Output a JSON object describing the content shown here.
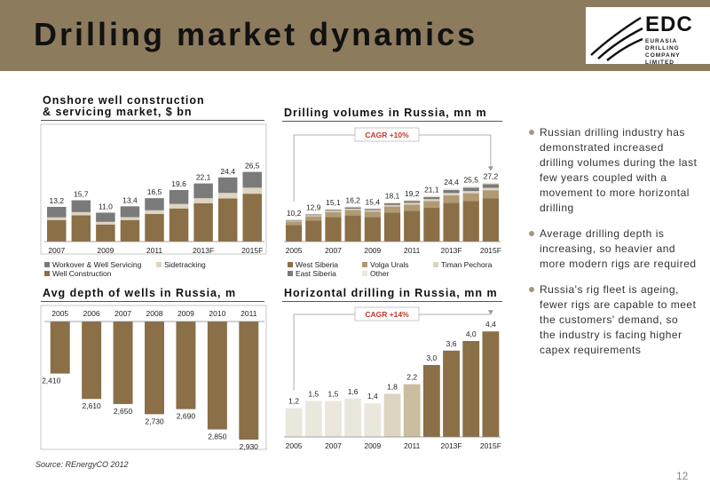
{
  "header": {
    "title": "Drilling market dynamics"
  },
  "logo": {
    "word": "EDC",
    "sub1": "EURASIA DRILLING",
    "sub2": "COMPANY LIMITED"
  },
  "chart1": {
    "title1": "Onshore well construction",
    "title2": "& servicing market, $ bn"
  },
  "chart2": {
    "title": "Drilling volumes in Russia, mn m",
    "cagr": "CAGR +10%"
  },
  "chart3": {
    "title": "Avg depth of wells in Russia, m"
  },
  "chart4": {
    "title": "Horizontal drilling in Russia, mn m",
    "cagr": "CAGR +14%"
  },
  "bullets": [
    "Russian drilling industry has demonstrated increased drilling volumes during the last few years coupled with a movement to more horizontal drilling",
    "Average drilling depth is increasing, so heavier and more modern rigs are required",
    "Russia's rig fleet is ageing, fewer rigs are capable to meet the customers' demand, so the industry is facing higher capex requirements"
  ],
  "source": "Source: REnergyCO 2012",
  "page_number": "12",
  "colors": {
    "header": "#8d7b5d",
    "dark": "#8a6f47",
    "mid": "#b09a74",
    "light": "#ddd4c2",
    "grey": "#7a7a7a",
    "lightest": "#ece7dd",
    "red": "#c0392b"
  },
  "chart_data": [
    {
      "type": "bar",
      "title": "Onshore well construction & servicing market, $ bn",
      "categories": [
        "2007",
        "2008",
        "2009",
        "2010",
        "2011",
        "2012",
        "2013F",
        "2014F",
        "2015F"
      ],
      "tick_labels": [
        "2007",
        "2009",
        "2011",
        "2013F",
        "2015F"
      ],
      "totals": [
        "13,2",
        "15,7",
        "11,0",
        "13,4",
        "16,5",
        "19,6",
        "22,1",
        "24,4",
        "26,5"
      ],
      "series": [
        {
          "name": "Well Construction",
          "values": [
            8.2,
            10.0,
            6.5,
            8.2,
            10.5,
            12.6,
            14.6,
            16.4,
            18.2
          ]
        },
        {
          "name": "Sidetracking",
          "values": [
            1.0,
            1.2,
            1.0,
            1.1,
            1.4,
            1.7,
            1.9,
            2.1,
            2.3
          ]
        },
        {
          "name": "Workover & Well Servicing",
          "values": [
            4.0,
            4.5,
            3.5,
            4.1,
            4.6,
            5.3,
            5.6,
            5.9,
            6.0
          ]
        }
      ],
      "legend": [
        "Workover & Well Servicing",
        "Sidetracking",
        "Well Construction"
      ],
      "ylim": [
        0,
        30
      ]
    },
    {
      "type": "bar",
      "title": "Drilling volumes in Russia, mn m",
      "categories": [
        "2005",
        "2006",
        "2007",
        "2008",
        "2009",
        "2010",
        "2011",
        "2012",
        "2013F",
        "2014F",
        "2015F"
      ],
      "tick_labels": [
        "2005",
        "2007",
        "2009",
        "2011",
        "2013F",
        "2015F"
      ],
      "totals": [
        "10,2",
        "12,9",
        "15,1",
        "16,2",
        "15,4",
        "18,1",
        "19,2",
        "21,1",
        "24,4",
        "25,5",
        "27,2"
      ],
      "series": [
        {
          "name": "West Siberia",
          "values": [
            7.6,
            9.6,
            11.2,
            12.0,
            11.3,
            13.3,
            14.1,
            15.5,
            17.8,
            18.6,
            19.8
          ]
        },
        {
          "name": "Volga Urals",
          "values": [
            1.6,
            2.0,
            2.3,
            2.5,
            2.5,
            2.8,
            2.9,
            3.1,
            3.5,
            3.6,
            3.8
          ]
        },
        {
          "name": "Timan Pechora",
          "values": [
            0.4,
            0.5,
            0.6,
            0.6,
            0.6,
            0.7,
            0.8,
            0.9,
            1.0,
            1.0,
            1.1
          ]
        },
        {
          "name": "East Siberia",
          "values": [
            0.3,
            0.4,
            0.5,
            0.6,
            0.6,
            0.8,
            0.9,
            1.0,
            1.4,
            1.6,
            1.7
          ]
        },
        {
          "name": "Other",
          "values": [
            0.3,
            0.4,
            0.5,
            0.5,
            0.4,
            0.5,
            0.5,
            0.6,
            0.7,
            0.7,
            0.8
          ]
        }
      ],
      "legend": [
        "West Siberia",
        "Volga Urals",
        "Timan Pechora",
        "East Siberia",
        "Other"
      ],
      "annotation": "CAGR +10%",
      "ylim": [
        0,
        30
      ]
    },
    {
      "type": "bar",
      "title": "Avg depth of wells in Russia, m",
      "categories": [
        "2005",
        "2006",
        "2007",
        "2008",
        "2009",
        "2010",
        "2011"
      ],
      "values": [
        2410,
        2610,
        2650,
        2730,
        2690,
        2850,
        2930
      ],
      "labels": [
        "2,410",
        "2,610",
        "2,650",
        "2,730",
        "2,690",
        "2,850",
        "2,930"
      ],
      "orientation": "inverted"
    },
    {
      "type": "bar",
      "title": "Horizontal drilling in Russia, mn m",
      "categories": [
        "2005",
        "2006",
        "2007",
        "2008",
        "2009",
        "2010",
        "2011",
        "2012",
        "2013F",
        "2014F",
        "2015F"
      ],
      "tick_labels": [
        "2005",
        "2007",
        "2009",
        "2011",
        "2013F",
        "2015F"
      ],
      "values": [
        1.2,
        1.5,
        1.5,
        1.6,
        1.4,
        1.8,
        2.2,
        3.0,
        3.6,
        4.0,
        4.4
      ],
      "labels": [
        "1,2",
        "1,5",
        "1,5",
        "1,6",
        "1,4",
        "1,8",
        "2,2",
        "3,0",
        "3,6",
        "4,0",
        "4,4"
      ],
      "annotation": "CAGR +14%",
      "ylim": [
        0,
        5
      ]
    }
  ]
}
